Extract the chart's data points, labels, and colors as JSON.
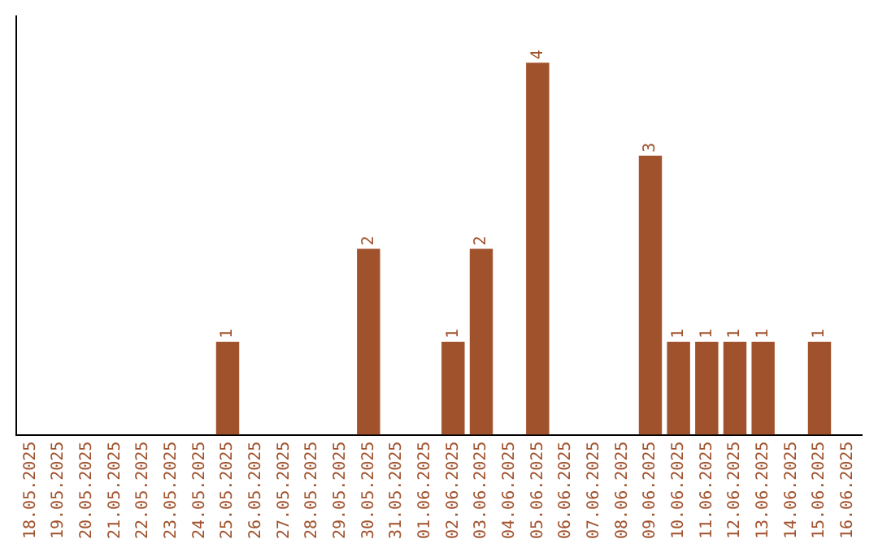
{
  "chart_data": {
    "type": "bar",
    "categories": [
      "18.05.2025",
      "19.05.2025",
      "20.05.2025",
      "21.05.2025",
      "22.05.2025",
      "23.05.2025",
      "24.05.2025",
      "25.05.2025",
      "26.05.2025",
      "27.05.2025",
      "28.05.2025",
      "29.05.2025",
      "30.05.2025",
      "31.05.2025",
      "01.06.2025",
      "02.06.2025",
      "03.06.2025",
      "04.06.2025",
      "05.06.2025",
      "06.06.2025",
      "07.06.2025",
      "08.06.2025",
      "09.06.2025",
      "10.06.2025",
      "11.06.2025",
      "12.06.2025",
      "13.06.2025",
      "14.06.2025",
      "15.06.2025",
      "16.06.2025"
    ],
    "values": [
      0,
      0,
      0,
      0,
      0,
      0,
      0,
      1,
      0,
      0,
      0,
      0,
      2,
      0,
      0,
      1,
      2,
      0,
      4,
      0,
      0,
      0,
      3,
      1,
      1,
      1,
      1,
      0,
      1,
      0
    ],
    "value_labels": [
      null,
      null,
      null,
      null,
      null,
      null,
      null,
      "1",
      null,
      null,
      null,
      null,
      "2",
      null,
      null,
      "1",
      "2",
      null,
      "4",
      null,
      null,
      null,
      "3",
      "1",
      "1",
      "1",
      "1",
      null,
      "1",
      null
    ],
    "color": "#a0522d",
    "tick_labels": "x",
    "grid": false,
    "legend": false
  }
}
